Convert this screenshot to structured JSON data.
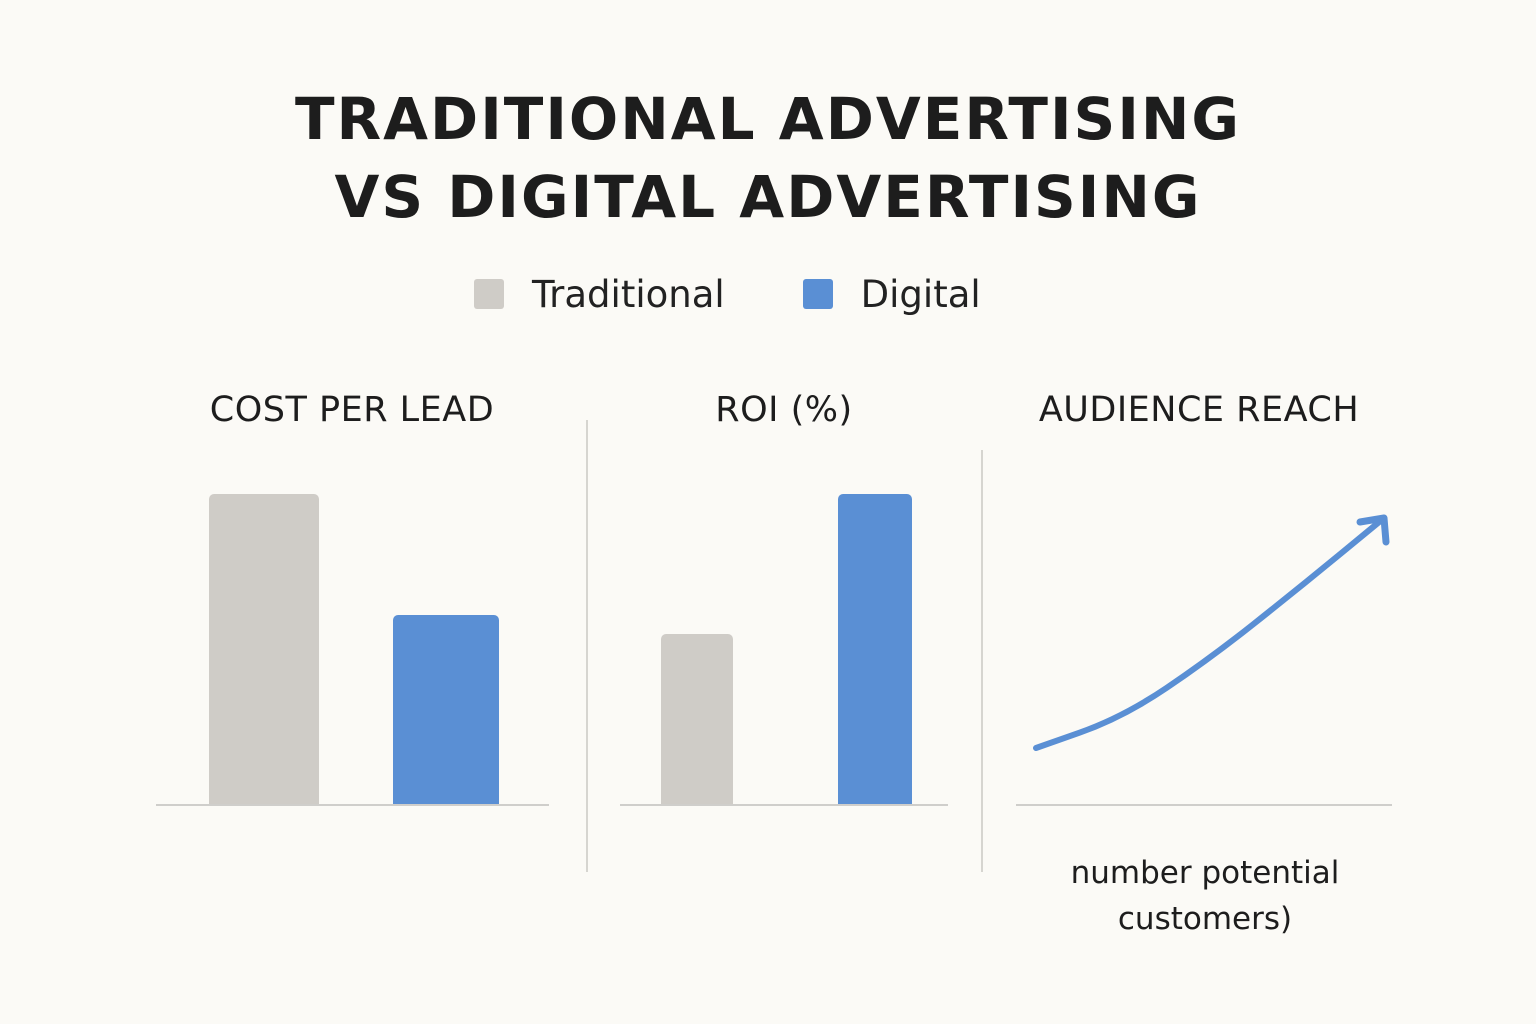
{
  "title": {
    "line1": "TRADITIONAL ADVERTISING",
    "line2": "VS DIGITAL ADVERTISING"
  },
  "legend": {
    "items": [
      {
        "label": "Traditional",
        "color": "#cfccc7"
      },
      {
        "label": "Digital",
        "color": "#5a8fd4"
      }
    ]
  },
  "colors": {
    "traditional": "#cfccc7",
    "digital": "#5a8fd4",
    "background": "#fbfaf6"
  },
  "chart_data": [
    {
      "type": "bar",
      "title": "COST PER LEAD",
      "categories": [
        "Traditional",
        "Digital"
      ],
      "values": [
        100,
        61
      ],
      "ylim": [
        0,
        100
      ],
      "axes_shown": false
    },
    {
      "type": "bar",
      "title": "ROI (%)",
      "categories": [
        "Traditional",
        "Digital"
      ],
      "values": [
        55,
        100
      ],
      "ylim": [
        0,
        100
      ],
      "axes_shown": false
    },
    {
      "type": "line",
      "title": "AUDIENCE REACH",
      "note_line1": "number potential",
      "note_line2": "customers)",
      "series": [
        {
          "x": [
            0,
            25,
            50,
            75,
            100
          ],
          "values": [
            10,
            22,
            45,
            72,
            100
          ]
        }
      ],
      "trend": "increasing",
      "arrowhead": true
    }
  ]
}
